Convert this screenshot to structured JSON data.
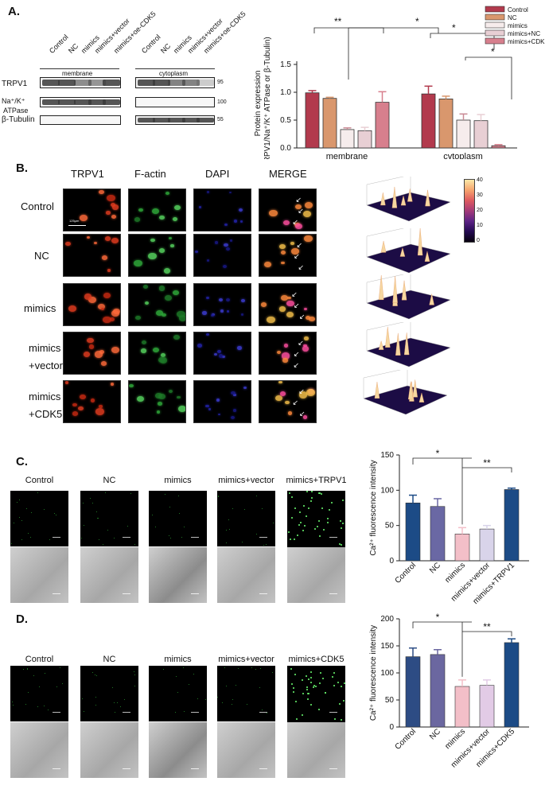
{
  "panels": {
    "A": "A.",
    "B": "B.",
    "C": "C.",
    "D": "D."
  },
  "panelA": {
    "lanes": [
      "Control",
      "NC",
      "mimics",
      "mimics+vector",
      "mimics+oe-CDK5"
    ],
    "fractions": [
      "membrane",
      "cytoplasm"
    ],
    "rows": [
      "TRPV1",
      "Na⁺/K⁺ ATPase",
      "β-Tubulin"
    ],
    "row_label_line1": "Na⁺/K⁺",
    "row_label_line2": "ATPase",
    "markers": [
      "95",
      "100",
      "55"
    ]
  },
  "panelB": {
    "columns": [
      "TRPV1",
      "F-actin",
      "DAPI",
      "MERGE"
    ],
    "rows": [
      [
        "Control"
      ],
      [
        "NC"
      ],
      [
        "mimics"
      ],
      [
        "mimics",
        "+vector"
      ],
      [
        "mimics",
        "+CDK5"
      ]
    ],
    "scalebar": "125μm",
    "colorbar_ticks": [
      "40",
      "30",
      "20",
      "10",
      "0"
    ],
    "colormap": [
      "#fce8a8",
      "#f6a46e",
      "#de5a5f",
      "#a43a78",
      "#5d2386",
      "#240a52",
      "#06010e"
    ]
  },
  "panelC": {
    "columns": [
      "Control",
      "NC",
      "mimics",
      "mimics+vector",
      "mimics+TRPV1"
    ]
  },
  "panelD": {
    "columns": [
      "Control",
      "NC",
      "mimics",
      "mimics+vector",
      "mimics+CDK5"
    ]
  },
  "chart_data": [
    {
      "type": "bar",
      "ylabel": "Protein expression",
      "ylabel2": "(TRPV1/Na⁺/K⁺ ATPase or β-Tubulin)",
      "categories": [
        "membrane",
        "cytoplasm"
      ],
      "ylim": [
        0,
        1.5
      ],
      "yticks": [
        "0.0",
        "0.5",
        "1.0",
        "1.5"
      ],
      "series": [
        {
          "name": "Control",
          "color": "#b23a4d",
          "values": [
            0.99,
            0.97
          ],
          "err": [
            0.04,
            0.14
          ]
        },
        {
          "name": "NC",
          "color": "#d9976d",
          "values": [
            0.89,
            0.88
          ],
          "err": [
            0.02,
            0.05
          ]
        },
        {
          "name": "mimics",
          "color": "#f6ecec",
          "values": [
            0.33,
            0.5
          ],
          "err": [
            0.03,
            0.11
          ]
        },
        {
          "name": "mimics+NC",
          "color": "#e8cfd4",
          "values": [
            0.31,
            0.49
          ],
          "err": [
            0.06,
            0.11
          ]
        },
        {
          "name": "mimics+CDK5",
          "color": "#d77f8d",
          "values": [
            0.82,
            0.04
          ],
          "err": [
            0.19,
            0.02
          ]
        }
      ],
      "significance": [
        "**",
        "*",
        "*",
        "*"
      ]
    },
    {
      "type": "bar",
      "ylabel": "Ca²⁺ fluorescence intensity",
      "categories": [
        "Control",
        "NC",
        "mimics",
        "mimics+vector",
        "mimics+TRPV1"
      ],
      "values": [
        82,
        77,
        38,
        45,
        101
      ],
      "err": [
        11,
        11,
        9,
        5,
        2
      ],
      "colors": [
        "#1c4b86",
        "#6a68a4",
        "#f3bfc8",
        "#d9d4ea",
        "#1c4b86"
      ],
      "ylim": [
        0,
        150
      ],
      "yticks": [
        "0",
        "50",
        "100",
        "150"
      ],
      "significance": [
        "*",
        "**"
      ]
    },
    {
      "type": "bar",
      "ylabel": "Ca²⁺ fluorescence intensity",
      "categories": [
        "Control",
        "NC",
        "mimics",
        "mimics+vector",
        "mimics+CDK5"
      ],
      "values": [
        130,
        134,
        75,
        77,
        156
      ],
      "err": [
        16,
        9,
        12,
        10,
        7
      ],
      "colors": [
        "#2d4c84",
        "#6b67a0",
        "#f3bfc8",
        "#e2cbe6",
        "#1c4b86"
      ],
      "ylim": [
        0,
        200
      ],
      "yticks": [
        "0",
        "50",
        "100",
        "150",
        "200"
      ],
      "significance": [
        "*",
        "**"
      ]
    }
  ]
}
